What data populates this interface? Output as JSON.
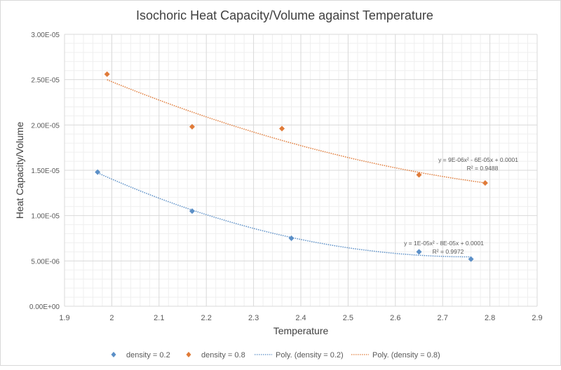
{
  "chart_data": {
    "type": "scatter",
    "title": "Isochoric Heat Capacity/Volume against Temperature",
    "xlabel": "Temperature",
    "ylabel": "Heat Capacity/Volume",
    "xlim": [
      1.9,
      2.9
    ],
    "ylim": [
      0,
      3e-05
    ],
    "x_ticks": [
      1.9,
      2.0,
      2.1,
      2.2,
      2.3,
      2.4,
      2.5,
      2.6,
      2.7,
      2.8,
      2.9
    ],
    "x_tick_labels": [
      "1.9",
      "2",
      "2.1",
      "2.2",
      "2.3",
      "2.4",
      "2.5",
      "2.6",
      "2.7",
      "2.8",
      "2.9"
    ],
    "y_ticks": [
      0,
      5e-06,
      1e-05,
      1.5e-05,
      2e-05,
      2.5e-05,
      3e-05
    ],
    "y_tick_labels": [
      "0.00E+00",
      "5.00E-06",
      "1.00E-05",
      "1.50E-05",
      "2.00E-05",
      "2.50E-05",
      "3.00E-05"
    ],
    "grid": true,
    "minor_grid": true,
    "legend_position": "bottom",
    "series": [
      {
        "name": "density = 0.2",
        "color": "#5b8fc7",
        "marker": "diamond",
        "x": [
          1.97,
          2.17,
          2.38,
          2.65,
          2.76
        ],
        "y": [
          1.48e-05,
          1.05e-05,
          7.5e-06,
          6e-06,
          5.2e-06
        ],
        "trendline": {
          "name": "Poly. (density = 0.2)",
          "type": "polynomial",
          "order": 2,
          "equation": "y = 1E-05x² - 8E-05x + 0.0001",
          "r2_label": "R² = 0.9972",
          "style": "dotted"
        }
      },
      {
        "name": "density = 0.8",
        "color": "#e07b39",
        "marker": "diamond",
        "x": [
          1.99,
          2.17,
          2.36,
          2.65,
          2.79
        ],
        "y": [
          2.56e-05,
          1.98e-05,
          1.96e-05,
          1.45e-05,
          1.36e-05
        ],
        "trendline": {
          "name": "Poly. (density = 0.8)",
          "type": "polynomial",
          "order": 2,
          "equation": "y = 9E-06x² - 6E-05x + 0.0001",
          "r2_label": "R² = 0.9488",
          "style": "dotted"
        }
      }
    ]
  }
}
